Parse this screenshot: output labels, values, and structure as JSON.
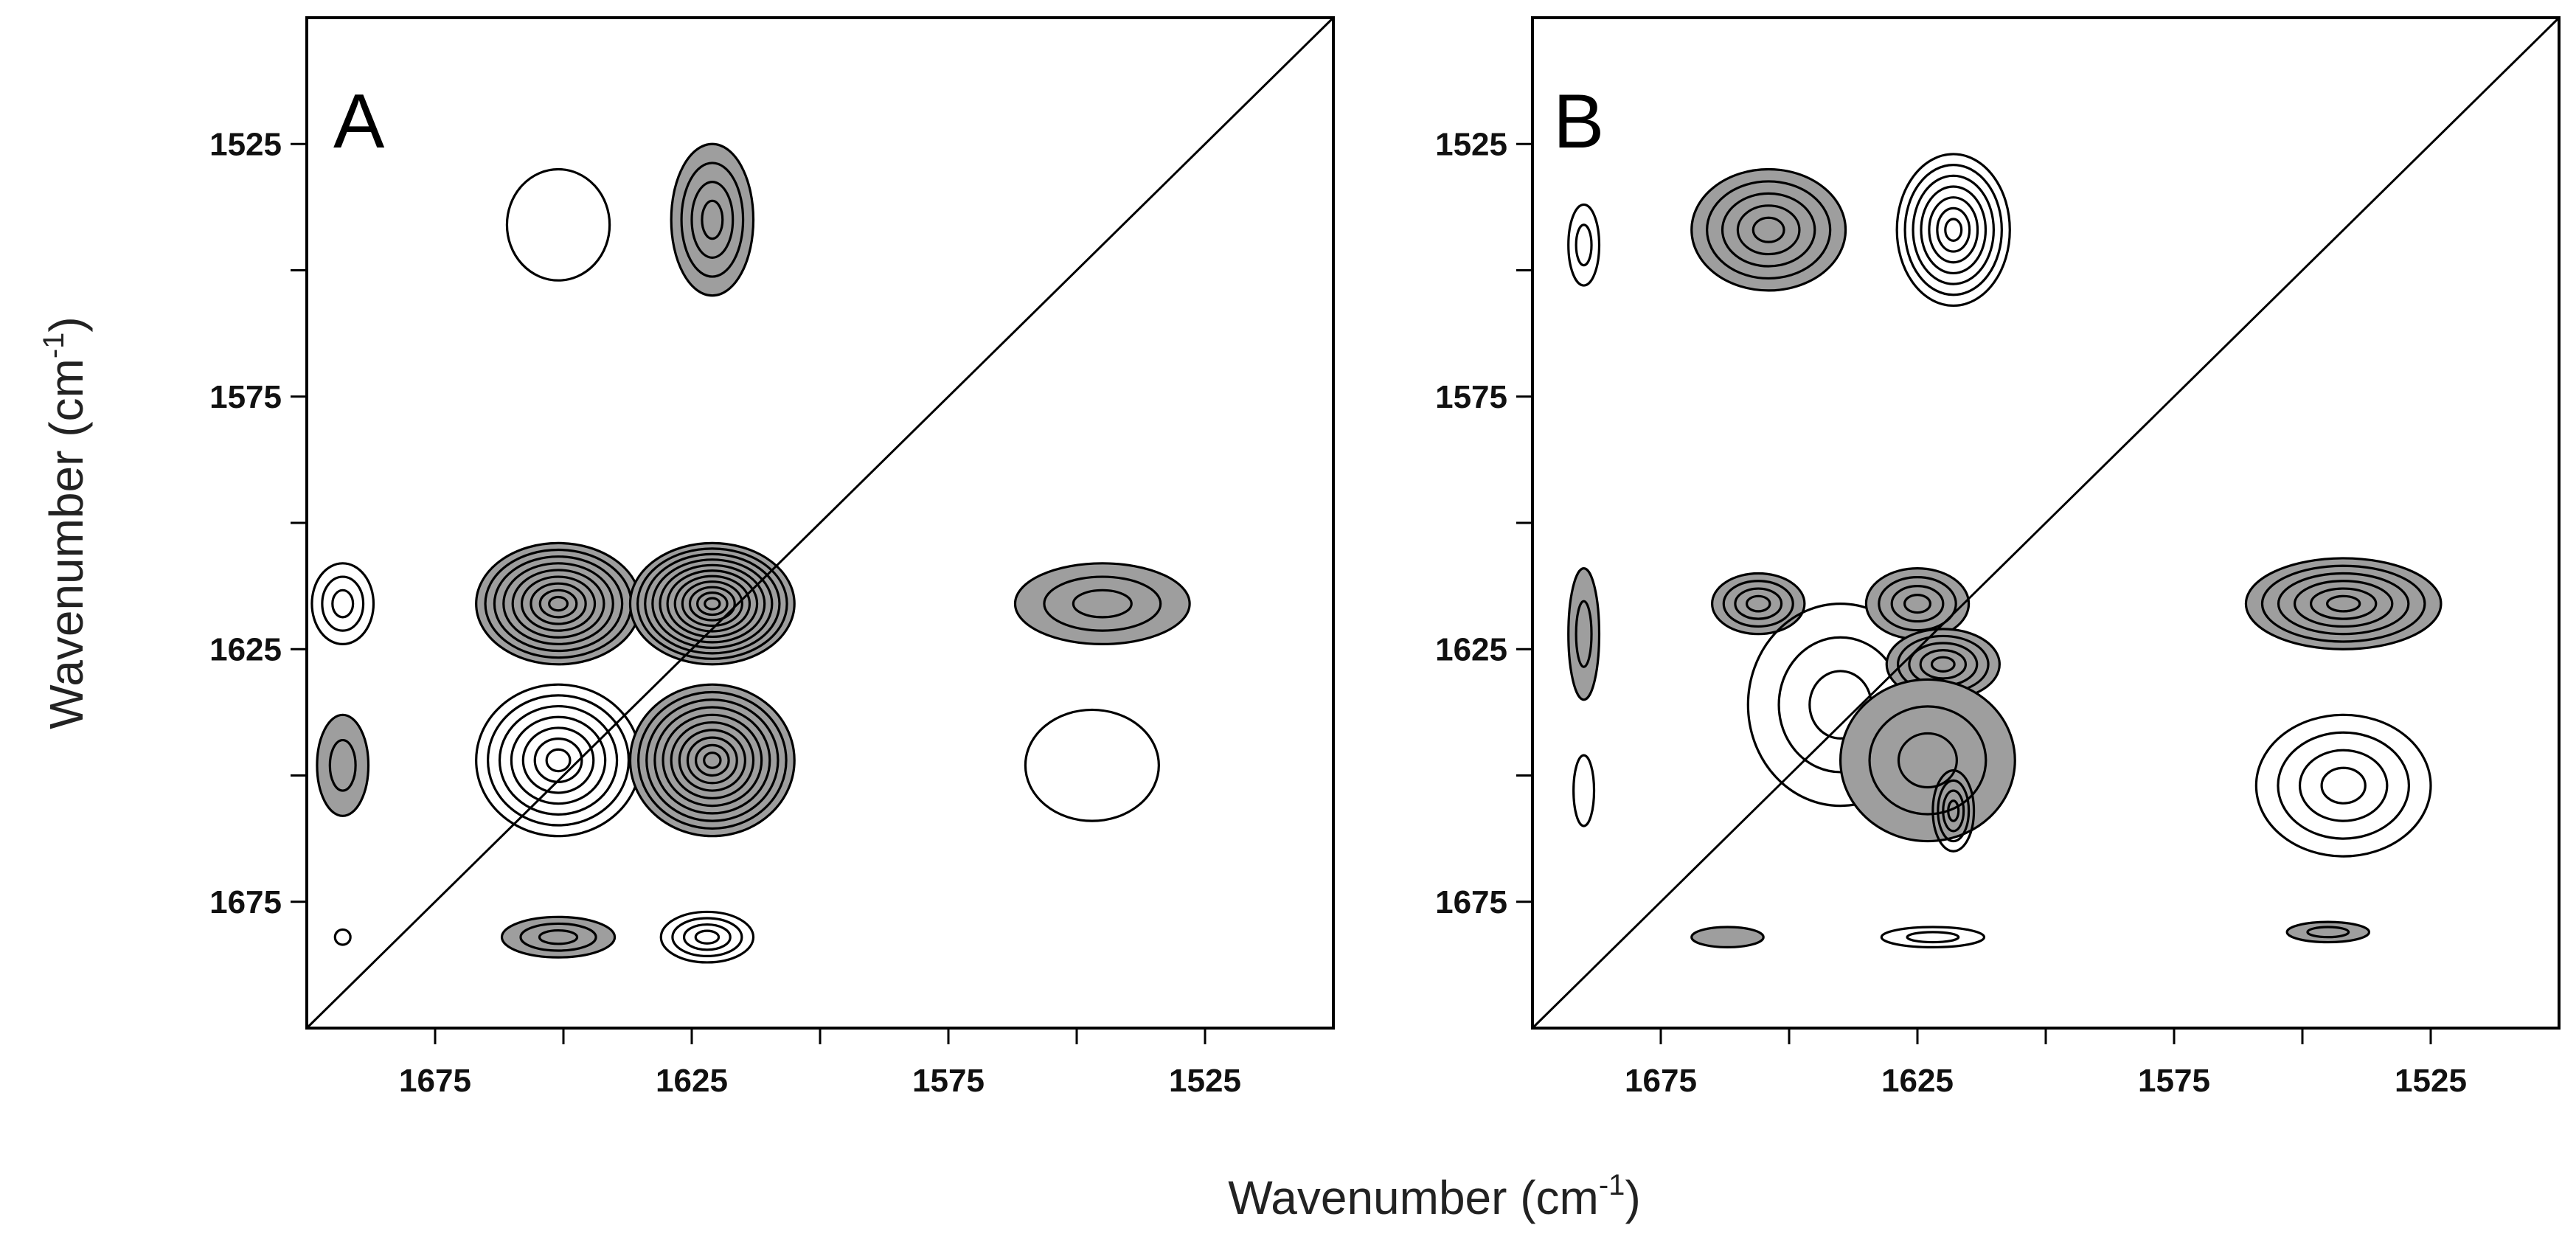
{
  "chart_data": [
    {
      "type": "contour",
      "panel": "A",
      "x_ticks": [
        1675,
        1625,
        1575,
        1525
      ],
      "x_tick_labels": [
        "1675",
        "1625",
        "1575",
        "1525"
      ],
      "y_ticks": [
        1525,
        1575,
        1625,
        1675
      ],
      "y_tick_labels": [
        "1525",
        "1575",
        "1625",
        "1675"
      ],
      "xlim": [
        1700,
        1500
      ],
      "ylim": [
        1500,
        1700
      ],
      "diagonal": true,
      "peaks": [
        {
          "x": 1693,
          "y": 1616,
          "rx": 6,
          "ry": 8,
          "levels": 3,
          "shaded": false
        },
        {
          "x": 1693,
          "y": 1648,
          "rx": 5,
          "ry": 10,
          "levels": 2,
          "shaded": true
        },
        {
          "x": 1693,
          "y": 1682,
          "rx": 1.5,
          "ry": 1.5,
          "levels": 1,
          "shaded": false
        },
        {
          "x": 1651,
          "y": 1541,
          "rx": 10,
          "ry": 11,
          "levels": 1,
          "shaded": false
        },
        {
          "x": 1651,
          "y": 1616,
          "rx": 16,
          "ry": 12,
          "levels": 9,
          "shaded": true
        },
        {
          "x": 1651,
          "y": 1647,
          "rx": 16,
          "ry": 15,
          "levels": 7,
          "shaded": false
        },
        {
          "x": 1651,
          "y": 1682,
          "rx": 11,
          "ry": 4,
          "levels": 3,
          "shaded": true
        },
        {
          "x": 1621,
          "y": 1540,
          "rx": 8,
          "ry": 15,
          "levels": 4,
          "shaded": true
        },
        {
          "x": 1621,
          "y": 1616,
          "rx": 16,
          "ry": 12,
          "levels": 11,
          "shaded": true
        },
        {
          "x": 1621,
          "y": 1647,
          "rx": 16,
          "ry": 15,
          "levels": 10,
          "shaded": true
        },
        {
          "x": 1622,
          "y": 1682,
          "rx": 9,
          "ry": 5,
          "levels": 4,
          "shaded": false
        },
        {
          "x": 1545,
          "y": 1616,
          "rx": 17,
          "ry": 8,
          "levels": 3,
          "shaded": true
        },
        {
          "x": 1547,
          "y": 1648,
          "rx": 13,
          "ry": 11,
          "levels": 1,
          "shaded": false
        }
      ]
    },
    {
      "type": "contour",
      "panel": "B",
      "x_ticks": [
        1675,
        1625,
        1575,
        1525
      ],
      "x_tick_labels": [
        "1675",
        "1625",
        "1575",
        "1525"
      ],
      "y_ticks": [
        1525,
        1575,
        1625,
        1675
      ],
      "y_tick_labels": [
        "1525",
        "1575",
        "1625",
        "1675"
      ],
      "xlim": [
        1700,
        1500
      ],
      "ylim": [
        1500,
        1700
      ],
      "diagonal": true,
      "peaks": [
        {
          "x": 1690,
          "y": 1545,
          "rx": 3,
          "ry": 8,
          "levels": 2,
          "shaded": false
        },
        {
          "x": 1690,
          "y": 1622,
          "rx": 3,
          "ry": 13,
          "levels": 2,
          "shaded": true
        },
        {
          "x": 1690,
          "y": 1653,
          "rx": 2,
          "ry": 7,
          "levels": 1,
          "shaded": false
        },
        {
          "x": 1654,
          "y": 1542,
          "rx": 15,
          "ry": 12,
          "levels": 5,
          "shaded": true
        },
        {
          "x": 1618,
          "y": 1542,
          "rx": 11,
          "ry": 15,
          "levels": 7,
          "shaded": false
        },
        {
          "x": 1656,
          "y": 1616,
          "rx": 9,
          "ry": 6,
          "levels": 4,
          "shaded": true
        },
        {
          "x": 1640,
          "y": 1636,
          "rx": 18,
          "ry": 20,
          "levels": 3,
          "shaded": false
        },
        {
          "x": 1625,
          "y": 1616,
          "rx": 10,
          "ry": 7,
          "levels": 4,
          "shaded": true
        },
        {
          "x": 1620,
          "y": 1628,
          "rx": 11,
          "ry": 7,
          "levels": 5,
          "shaded": true
        },
        {
          "x": 1623,
          "y": 1647,
          "rx": 17,
          "ry": 16,
          "levels": 3,
          "shaded": true
        },
        {
          "x": 1618,
          "y": 1657,
          "rx": 4,
          "ry": 8,
          "levels": 4,
          "shaded": false
        },
        {
          "x": 1662,
          "y": 1682,
          "rx": 7,
          "ry": 2,
          "levels": 1,
          "shaded": true
        },
        {
          "x": 1622,
          "y": 1682,
          "rx": 10,
          "ry": 2,
          "levels": 2,
          "shaded": false
        },
        {
          "x": 1542,
          "y": 1616,
          "rx": 19,
          "ry": 9,
          "levels": 6,
          "shaded": true
        },
        {
          "x": 1542,
          "y": 1652,
          "rx": 17,
          "ry": 14,
          "levels": 4,
          "shaded": false
        },
        {
          "x": 1545,
          "y": 1681,
          "rx": 8,
          "ry": 2,
          "levels": 2,
          "shaded": true
        }
      ]
    }
  ],
  "x_axis_title_main": "Wavenumber (cm",
  "x_axis_title_sup": "-1",
  "x_axis_title_end": ")",
  "y_axis_title_main": "Wavenumber (cm",
  "y_axis_title_sup": "-1",
  "y_axis_title_end": ")",
  "colors": {
    "shade": "#9e9e9e",
    "line": "#000000",
    "background": "#ffffff"
  }
}
